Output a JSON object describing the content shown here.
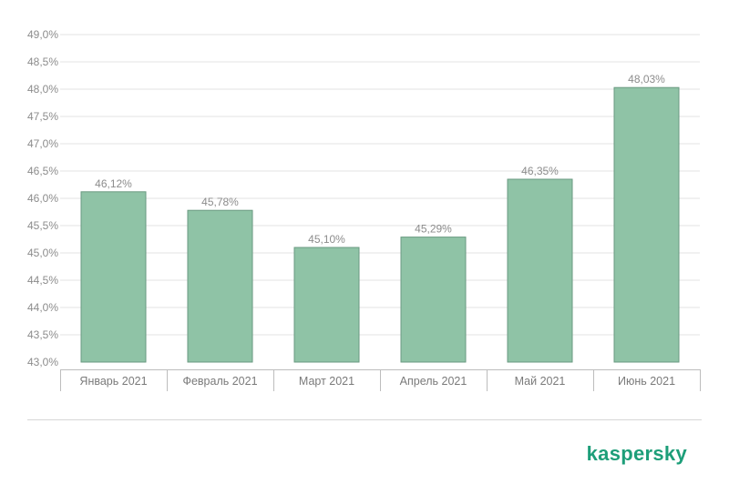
{
  "chart_data": {
    "type": "bar",
    "categories": [
      "Январь 2021",
      "Февраль 2021",
      "Март 2021",
      "Апрель 2021",
      "Май 2021",
      "Июнь 2021"
    ],
    "values": [
      46.12,
      45.78,
      45.1,
      45.29,
      46.35,
      48.03
    ],
    "data_labels": [
      "46,12%",
      "45,78%",
      "45,10%",
      "45,29%",
      "46,35%",
      "48,03%"
    ],
    "yticks": [
      43.0,
      43.5,
      44.0,
      44.5,
      45.0,
      45.5,
      46.0,
      46.5,
      47.0,
      47.5,
      48.0,
      48.5,
      49.0
    ],
    "ytick_labels": [
      "43,0%",
      "43,5%",
      "44,0%",
      "44,5%",
      "45,0%",
      "45,5%",
      "46,0%",
      "46,5%",
      "47,0%",
      "47,5%",
      "48,0%",
      "48,5%",
      "49,0%"
    ],
    "ylim": [
      43.0,
      49.0
    ],
    "grid": true,
    "bar_color": "#8fc3a6",
    "title": "",
    "xlabel": "",
    "ylabel": ""
  },
  "brand": {
    "name": "kaspersky",
    "color": "#1d9e79"
  }
}
